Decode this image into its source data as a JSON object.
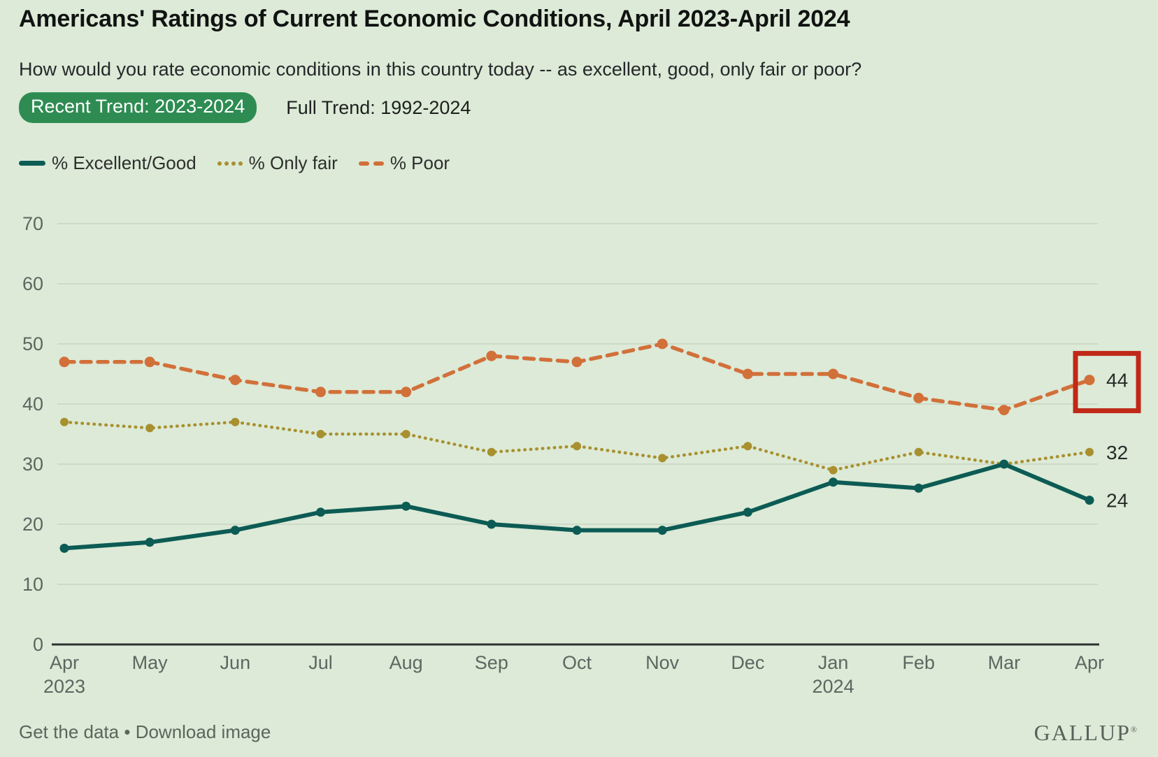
{
  "header": {
    "title": "Americans' Ratings of Current Economic Conditions, April 2023-April 2024",
    "subtitle": "How would you rate economic conditions in this country today -- as excellent, good, only fair or poor?",
    "tabs": [
      {
        "label": "Recent Trend: 2023-2024",
        "active": true
      },
      {
        "label": "Full Trend: 1992-2024",
        "active": false
      }
    ]
  },
  "legend": [
    {
      "label": "% Excellent/Good"
    },
    {
      "label": "% Only fair"
    },
    {
      "label": "% Poor"
    }
  ],
  "chart_data": {
    "type": "line",
    "x": [
      "Apr 2023",
      "May",
      "Jun",
      "Jul",
      "Aug",
      "Sep",
      "Oct",
      "Nov",
      "Dec",
      "Jan 2024",
      "Feb",
      "Mar",
      "Apr"
    ],
    "series": [
      {
        "name": "% Excellent/Good",
        "key": "excellent-good",
        "color": "#0c5b54",
        "dash": "solid",
        "values": [
          16,
          17,
          19,
          22,
          23,
          20,
          19,
          19,
          22,
          27,
          26,
          30,
          24
        ],
        "end_label": "24"
      },
      {
        "name": "% Only fair",
        "key": "only-fair",
        "color": "#a8902f",
        "dash": "dotted",
        "values": [
          37,
          36,
          37,
          35,
          35,
          32,
          33,
          31,
          33,
          29,
          32,
          30,
          32
        ],
        "end_label": "32"
      },
      {
        "name": "% Poor",
        "key": "poor",
        "color": "#d2703a",
        "dash": "dashed",
        "values": [
          47,
          47,
          44,
          42,
          42,
          48,
          47,
          50,
          45,
          45,
          41,
          39,
          44
        ],
        "end_label": "44",
        "end_highlight": true
      }
    ],
    "ylim": [
      0,
      70
    ],
    "yticks": [
      0,
      10,
      20,
      30,
      40,
      50,
      60,
      70
    ],
    "grid": true,
    "legend_position": "top",
    "highlight_color": "#c02817",
    "annotation": "red box highlighting final % Poor value of 44"
  },
  "footer": {
    "links": [
      "Get the data",
      "Download image"
    ],
    "separator": "•",
    "brand": "GALLUP",
    "brand_mark": "®"
  }
}
